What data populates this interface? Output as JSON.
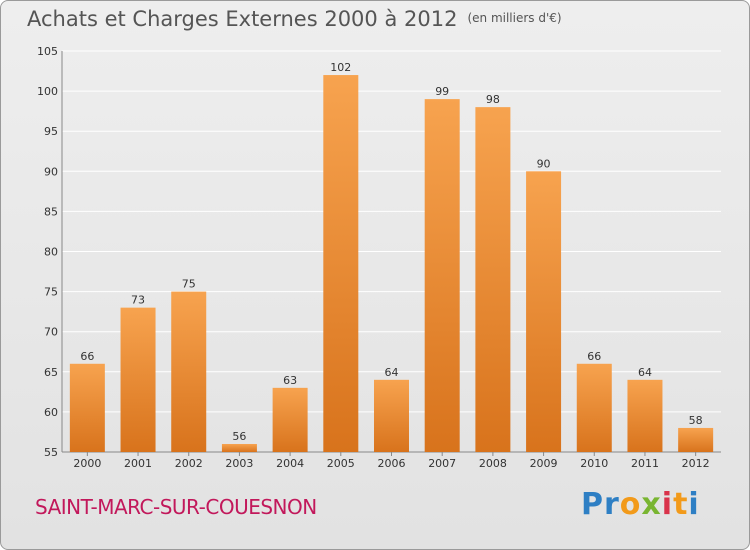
{
  "header": {
    "title": "Achats et Charges Externes 2000 à 2012",
    "unit": "(en milliers d'€)"
  },
  "footer": {
    "commune": "SAINT-MARC-SUR-COUESNON",
    "brand": "Proxiti"
  },
  "colors": {
    "bar_light": "#f7a34f",
    "bar_dark": "#d8731c",
    "axis_text": "#333333",
    "grid": "#ffffff",
    "commune_text": "#c2185b"
  },
  "chart_data": {
    "type": "bar",
    "title": "Achats et Charges Externes 2000 à 2012",
    "subtitle": "(en milliers d'€)",
    "categories": [
      "2000",
      "2001",
      "2002",
      "2003",
      "2004",
      "2005",
      "2006",
      "2007",
      "2008",
      "2009",
      "2010",
      "2011",
      "2012"
    ],
    "values": [
      66,
      73,
      75,
      56,
      63,
      102,
      64,
      99,
      98,
      90,
      66,
      64,
      58
    ],
    "ylim": [
      55,
      105
    ],
    "yticks": [
      55,
      60,
      65,
      70,
      75,
      80,
      85,
      90,
      95,
      100,
      105
    ],
    "grid": true,
    "data_labels": true,
    "xlabel": "",
    "ylabel": ""
  }
}
